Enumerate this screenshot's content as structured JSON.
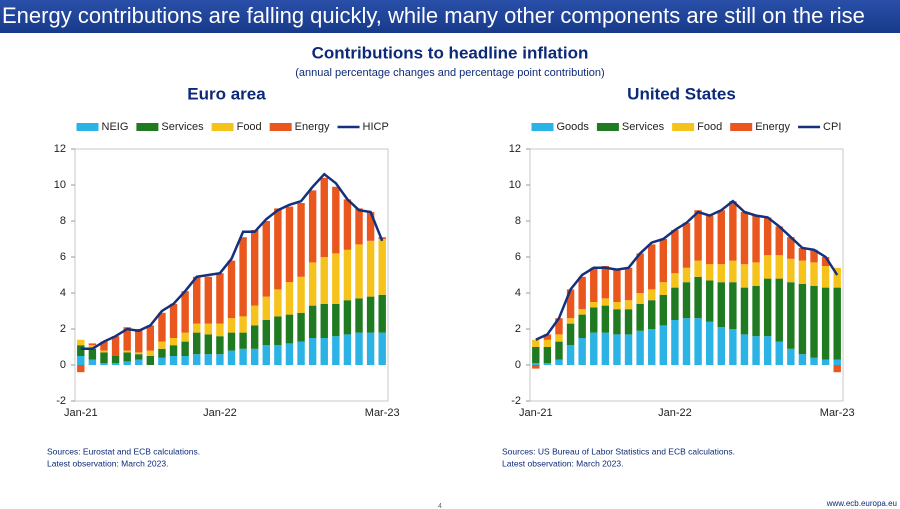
{
  "slide_title": "Energy contributions are falling quickly, while many other components are still on the rise",
  "title": "Contributions to headline inflation",
  "subtitle": "(annual percentage changes and percentage point contribution)",
  "footer_url": "www.ecb.europa.eu",
  "page_number": 4,
  "chart_data": [
    {
      "type": "bar",
      "stacked": true,
      "title": "Euro area",
      "categories": [
        "Jan-21",
        null,
        null,
        null,
        null,
        null,
        null,
        null,
        null,
        null,
        null,
        null,
        "Jan-22",
        null,
        null,
        null,
        null,
        null,
        null,
        null,
        null,
        null,
        null,
        null,
        null,
        null,
        "Mar-23"
      ],
      "ylim": [
        -2,
        12
      ],
      "yticks": [
        -2,
        0,
        2,
        4,
        6,
        8,
        10,
        12
      ],
      "series": [
        {
          "name": "NEIG",
          "color": "#2bb3e6",
          "values": [
            0.5,
            0.3,
            0.1,
            0.1,
            0.2,
            0.3,
            0.0,
            0.4,
            0.5,
            0.5,
            0.6,
            0.6,
            0.6,
            0.8,
            0.9,
            0.9,
            1.1,
            1.1,
            1.2,
            1.3,
            1.5,
            1.5,
            1.6,
            1.7,
            1.8,
            1.8,
            1.8
          ]
        },
        {
          "name": "Services",
          "color": "#1f7a22",
          "values": [
            0.6,
            0.6,
            0.6,
            0.4,
            0.5,
            0.3,
            0.5,
            0.5,
            0.6,
            0.8,
            1.2,
            1.1,
            1.0,
            1.0,
            0.9,
            1.3,
            1.4,
            1.6,
            1.6,
            1.6,
            1.8,
            1.9,
            1.8,
            1.9,
            1.9,
            2.0,
            2.1
          ]
        },
        {
          "name": "Food",
          "color": "#f6c31c",
          "values": [
            0.3,
            0.2,
            0.1,
            0.0,
            0.1,
            0.1,
            0.3,
            0.4,
            0.4,
            0.5,
            0.5,
            0.6,
            0.7,
            0.8,
            0.9,
            1.1,
            1.3,
            1.5,
            1.8,
            2.0,
            2.4,
            2.6,
            2.8,
            2.8,
            3.0,
            3.1,
            3.1
          ]
        },
        {
          "name": "Energy",
          "color": "#e9571f",
          "values": [
            -0.4,
            0.1,
            0.5,
            1.1,
            1.3,
            1.3,
            1.4,
            1.6,
            1.9,
            2.3,
            2.6,
            2.6,
            2.8,
            3.2,
            4.4,
            4.2,
            4.2,
            4.5,
            4.2,
            4.1,
            4.0,
            4.4,
            3.7,
            2.8,
            2.0,
            1.6,
            0.1
          ]
        },
        {
          "name": "HICP",
          "color": "#15307c",
          "type": "line",
          "values": [
            0.9,
            0.9,
            1.3,
            1.6,
            2.0,
            1.9,
            2.2,
            3.0,
            3.4,
            4.1,
            4.9,
            5.0,
            5.1,
            5.9,
            7.4,
            7.4,
            8.1,
            8.6,
            8.9,
            9.1,
            9.9,
            10.6,
            10.1,
            9.2,
            8.6,
            8.5,
            6.9
          ]
        }
      ],
      "notes": [
        "Sources: Eurostat and ECB calculations.",
        "Latest observation: March 2023."
      ]
    },
    {
      "type": "bar",
      "stacked": true,
      "title": "United States",
      "categories": [
        "Jan-21",
        null,
        null,
        null,
        null,
        null,
        null,
        null,
        null,
        null,
        null,
        null,
        "Jan-22",
        null,
        null,
        null,
        null,
        null,
        null,
        null,
        null,
        null,
        null,
        null,
        null,
        null,
        "Mar-23"
      ],
      "ylim": [
        -2,
        12
      ],
      "yticks": [
        -2,
        0,
        2,
        4,
        6,
        8,
        10,
        12
      ],
      "series": [
        {
          "name": "Goods",
          "color": "#2bb3e6",
          "values": [
            0.1,
            0.1,
            0.3,
            1.1,
            1.5,
            1.8,
            1.8,
            1.7,
            1.7,
            1.9,
            2.0,
            2.2,
            2.5,
            2.6,
            2.6,
            2.4,
            2.1,
            2.0,
            1.7,
            1.6,
            1.6,
            1.3,
            0.9,
            0.6,
            0.4,
            0.3,
            0.3
          ]
        },
        {
          "name": "Services",
          "color": "#1f7a22",
          "values": [
            0.9,
            0.9,
            1.0,
            1.2,
            1.3,
            1.4,
            1.5,
            1.4,
            1.4,
            1.5,
            1.6,
            1.7,
            1.8,
            2.0,
            2.3,
            2.3,
            2.5,
            2.6,
            2.6,
            2.8,
            3.2,
            3.5,
            3.7,
            3.9,
            4.0,
            4.0,
            4.0
          ]
        },
        {
          "name": "Food",
          "color": "#f6c31c",
          "values": [
            0.4,
            0.4,
            0.4,
            0.3,
            0.3,
            0.3,
            0.4,
            0.4,
            0.5,
            0.6,
            0.6,
            0.7,
            0.8,
            0.8,
            0.9,
            0.9,
            1.0,
            1.2,
            1.3,
            1.3,
            1.3,
            1.3,
            1.3,
            1.3,
            1.3,
            1.2,
            1.1
          ]
        },
        {
          "name": "Energy",
          "color": "#e9571f",
          "values": [
            -0.2,
            0.3,
            0.9,
            1.6,
            1.8,
            1.9,
            1.8,
            1.8,
            1.8,
            2.2,
            2.5,
            2.4,
            2.4,
            2.5,
            2.8,
            2.7,
            3.0,
            3.3,
            2.9,
            2.6,
            2.1,
            1.6,
            1.2,
            0.7,
            0.7,
            0.5,
            -0.4
          ]
        },
        {
          "name": "CPI",
          "color": "#15307c",
          "type": "line",
          "values": [
            1.4,
            1.7,
            2.6,
            4.2,
            5.0,
            5.4,
            5.4,
            5.3,
            5.4,
            6.2,
            6.8,
            7.0,
            7.5,
            7.9,
            8.5,
            8.3,
            8.6,
            9.1,
            8.5,
            8.3,
            8.2,
            7.7,
            7.1,
            6.5,
            6.4,
            6.0,
            5.0
          ]
        }
      ],
      "notes": [
        "Sources: US Bureau of Labor Statistics and ECB calculations.",
        "Latest observation: March 2023."
      ]
    }
  ]
}
